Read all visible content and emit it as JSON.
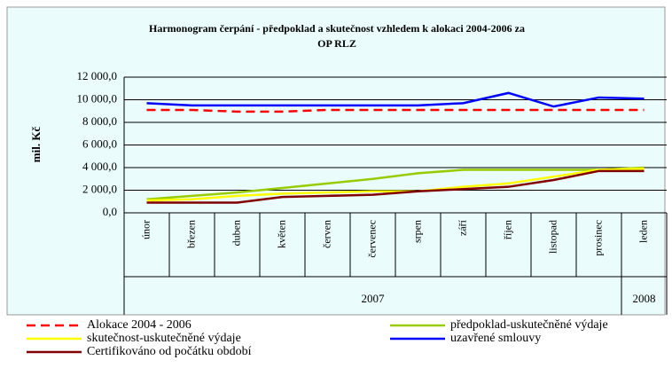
{
  "chart_data": {
    "type": "line",
    "title": "Harmonogram čerpání - předpoklad a skutečnost vzhledem k alokaci 2004-2006 za",
    "subtitle": "OP RLZ",
    "ylabel": "mil. Kč",
    "categories": [
      "únor",
      "březen",
      "duben",
      "květen",
      "červen",
      "červenec",
      "srpen",
      "září",
      "říjen",
      "listopad",
      "prosinec",
      "leden"
    ],
    "year_groups": [
      {
        "label": "2007",
        "count": 11
      },
      {
        "label": "2008",
        "count": 1
      }
    ],
    "ylim": [
      0,
      12000
    ],
    "yticks": [
      {
        "value": 0,
        "label": "0,0"
      },
      {
        "value": 2000,
        "label": "2 000,0"
      },
      {
        "value": 4000,
        "label": "4 000,0"
      },
      {
        "value": 6000,
        "label": "6 000,0"
      },
      {
        "value": 8000,
        "label": "8 000,0"
      },
      {
        "value": 10000,
        "label": "10 000,0"
      },
      {
        "value": 12000,
        "label": "12 000,0"
      }
    ],
    "grid": true,
    "series": [
      {
        "name": "Alokace 2004 - 2006",
        "color": "#ff0000",
        "dashed": true,
        "values": [
          9100,
          9100,
          8950,
          8950,
          9100,
          9100,
          9100,
          9100,
          9100,
          9100,
          9100,
          9100
        ]
      },
      {
        "name": "předpoklad-uskutečněné výdaje",
        "color": "#99cc00",
        "values": [
          1200,
          1500,
          1800,
          2200,
          2600,
          3000,
          3500,
          3800,
          3800,
          3800,
          3800,
          4000
        ]
      },
      {
        "name": "skutečnost-uskutečněné výdaje",
        "color": "#ffff00",
        "values": [
          1100,
          1200,
          1500,
          1700,
          1800,
          1900,
          1900,
          2300,
          2600,
          3200,
          3800,
          3900
        ]
      },
      {
        "name": "uzavřené smlouvy",
        "color": "#0000ff",
        "values": [
          9700,
          9500,
          9500,
          9500,
          9500,
          9500,
          9500,
          9700,
          10600,
          9400,
          10200,
          10100
        ]
      },
      {
        "name": "Certifikováno od počátku období",
        "color": "#800000",
        "values": [
          900,
          900,
          900,
          1400,
          1500,
          1600,
          1900,
          2100,
          2300,
          2900,
          3700,
          3700
        ]
      }
    ]
  }
}
